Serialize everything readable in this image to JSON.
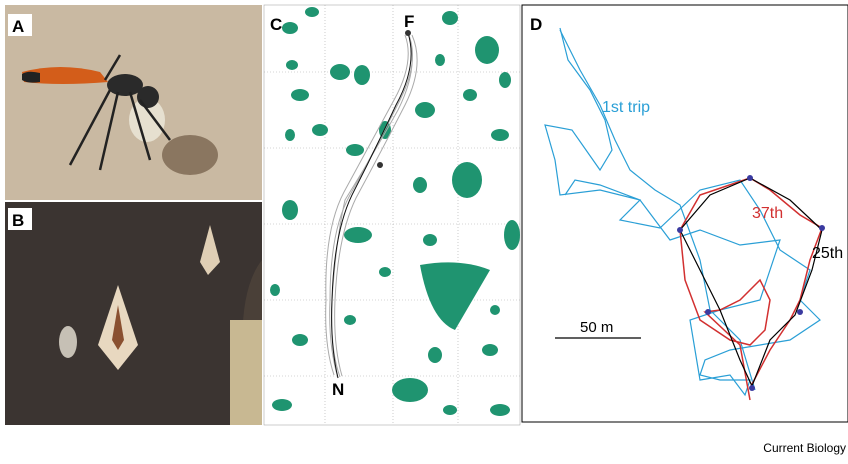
{
  "panels": {
    "a": {
      "label": "A"
    },
    "b": {
      "label": "B"
    },
    "c": {
      "label": "C",
      "feeder": "F",
      "nest": "N"
    },
    "d": {
      "label": "D",
      "trip_first": "1st trip",
      "trip_37": "37th",
      "trip_25": "25th",
      "scale": "50 m"
    }
  },
  "footer": "Current Biology"
}
